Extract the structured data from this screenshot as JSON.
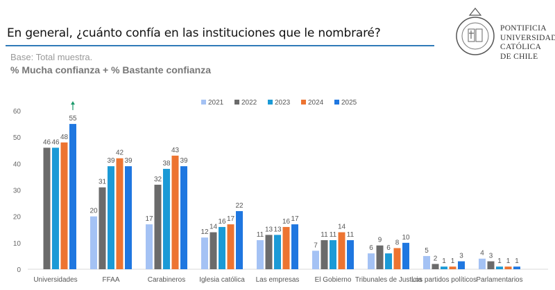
{
  "header": {
    "question": "En general, ¿cuánto confía en las instituciones que le nombraré?",
    "base": "Base: Total muestra.",
    "subtitle": "% Mucha confianza + % Bastante confianza",
    "logo_text": [
      "PONTIFICIA",
      "UNIVERSIDAD",
      "CATÓLICA",
      "DE CHILE"
    ]
  },
  "chart_data": {
    "type": "bar",
    "categories": [
      "Universidades",
      "FFAA",
      "Carabineros",
      "Iglesia católica",
      "Las empresas",
      "El Gobierno",
      "Tribunales de Justicia",
      "Los partidos políticos",
      "Parlamentarios"
    ],
    "series": [
      {
        "name": "2021",
        "color": "#a4c2f4",
        "values": [
          null,
          20,
          17,
          12,
          11,
          7,
          6,
          5,
          4
        ]
      },
      {
        "name": "2022",
        "color": "#6b6b6b",
        "values": [
          46,
          31,
          32,
          14,
          13,
          11,
          9,
          2,
          3
        ]
      },
      {
        "name": "2023",
        "color": "#1b9ad6",
        "values": [
          46,
          39,
          38,
          16,
          13,
          11,
          6,
          1,
          1
        ]
      },
      {
        "name": "2024",
        "color": "#ed7431",
        "values": [
          48,
          42,
          43,
          17,
          16,
          14,
          8,
          1,
          1
        ]
      },
      {
        "name": "2025",
        "color": "#1f77e0",
        "values": [
          55,
          39,
          39,
          22,
          17,
          11,
          10,
          3,
          1
        ]
      }
    ],
    "ylim": [
      0,
      60
    ],
    "yticks": [
      0,
      10,
      20,
      30,
      40,
      50,
      60
    ],
    "legend": "top",
    "data_labels": true,
    "annotation": {
      "type": "up-arrow",
      "category": "Universidades",
      "series": "2025",
      "color": "#1a9a6a"
    }
  }
}
